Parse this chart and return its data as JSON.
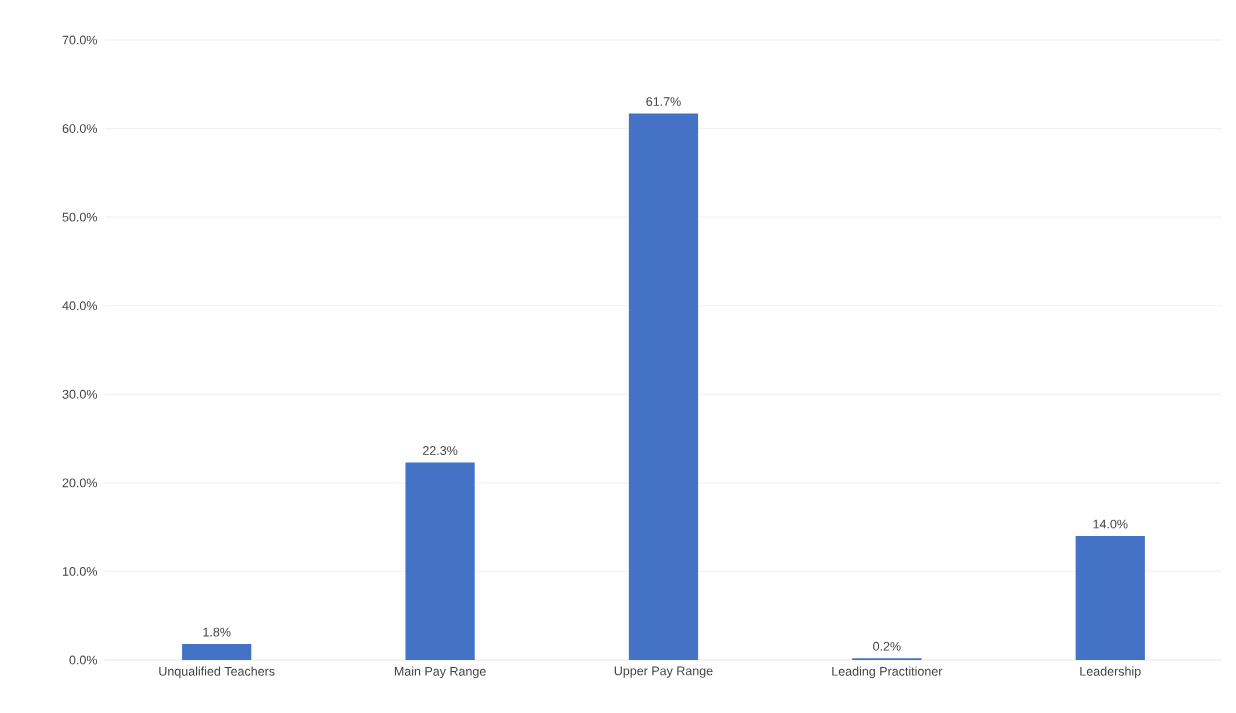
{
  "chart_data": {
    "type": "bar",
    "categories": [
      "Unqualified Teachers",
      "Main Pay Range",
      "Upper Pay Range",
      "Leading Practitioner",
      "Leadership"
    ],
    "values": [
      1.8,
      22.3,
      61.7,
      0.2,
      14.0
    ],
    "value_labels": [
      "1.8%",
      "22.3%",
      "61.7%",
      "0.2%",
      "14.0%"
    ],
    "color": "#4472c4",
    "ylim": [
      0,
      70
    ],
    "yticks": [
      {
        "value": 0,
        "label": "0.0%"
      },
      {
        "value": 10,
        "label": "10.0%"
      },
      {
        "value": 20,
        "label": "20.0%"
      },
      {
        "value": 30,
        "label": "30.0%"
      },
      {
        "value": 40,
        "label": "40.0%"
      },
      {
        "value": 50,
        "label": "50.0%"
      },
      {
        "value": 60,
        "label": "60.0%"
      },
      {
        "value": 70,
        "label": "70.0%"
      }
    ],
    "grid": "y"
  }
}
